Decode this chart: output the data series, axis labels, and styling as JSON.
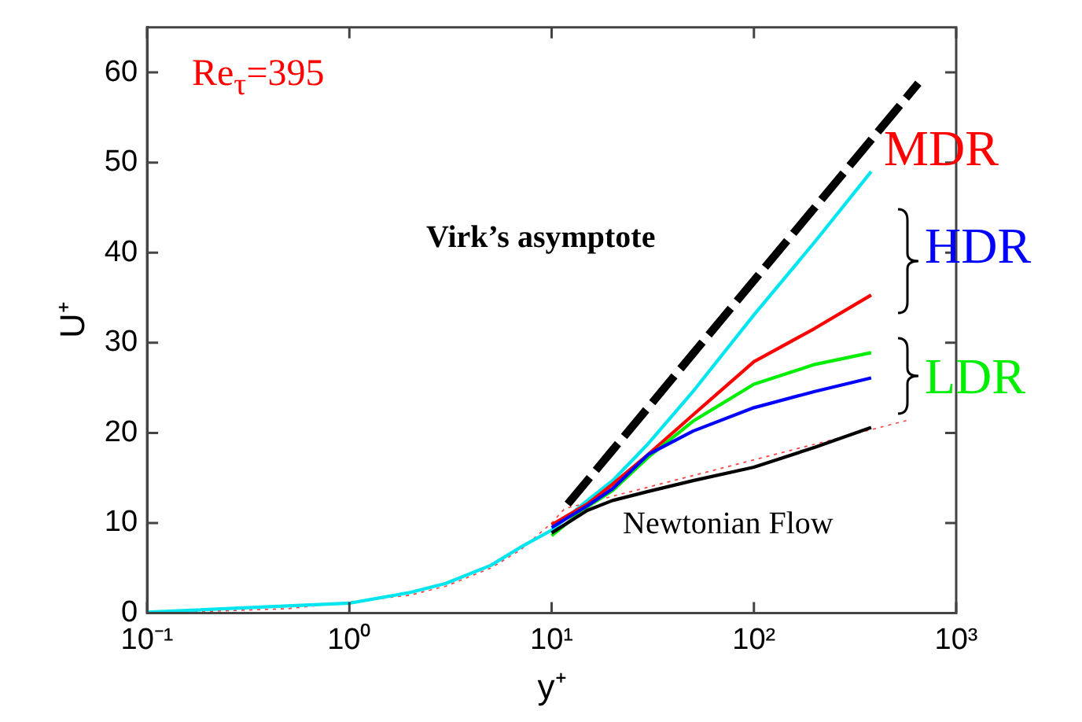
{
  "chart_data": {
    "type": "line",
    "xlabel": "y⁺",
    "ylabel": "U⁺",
    "log": "x",
    "xlim": [
      0.1,
      1000
    ],
    "xticks": [
      {
        "value": 0.1,
        "label": "10⁻¹"
      },
      {
        "value": 1,
        "label": "10⁰"
      },
      {
        "value": 10,
        "label": "10¹"
      },
      {
        "value": 100,
        "label": "10²"
      },
      {
        "value": 1000,
        "label": "10³"
      }
    ],
    "ylim": [
      0,
      65
    ],
    "yticks": [
      0,
      10,
      20,
      30,
      40,
      50,
      60
    ],
    "grid": false,
    "legend": false,
    "marker": "none",
    "series": [
      {
        "color": "#000000",
        "x": [
          10,
          15,
          20,
          30,
          50,
          100,
          200,
          380
        ],
        "values": [
          8.9,
          11.4,
          12.5,
          13.5,
          14.7,
          16.2,
          18.4,
          20.6
        ]
      },
      {
        "color": "#0000ff",
        "x": [
          10,
          15,
          20,
          30,
          50,
          100,
          200,
          380
        ],
        "values": [
          9.5,
          11.9,
          13.8,
          17.6,
          20.2,
          22.8,
          24.6,
          26.1
        ]
      },
      {
        "color": "#00ee00",
        "x": [
          10,
          15,
          20,
          30,
          50,
          100,
          200,
          380
        ],
        "values": [
          8.6,
          11.8,
          13.6,
          17.3,
          21.3,
          25.4,
          27.6,
          28.9
        ]
      },
      {
        "color": "#ff0000",
        "x": [
          10,
          15,
          20,
          30,
          50,
          100,
          200,
          380
        ],
        "values": [
          9.8,
          12.1,
          14.3,
          17.6,
          22,
          27.9,
          31.6,
          35.3
        ]
      },
      {
        "color": "#00e5ee",
        "x": [
          0.1,
          1,
          2,
          3,
          5,
          7,
          10,
          15,
          20,
          30,
          50,
          100,
          200,
          380
        ],
        "values": [
          0.1,
          1.1,
          2.3,
          3.3,
          5.3,
          7.3,
          9.2,
          12.5,
          14.7,
          18.8,
          24.6,
          33.1,
          41.2,
          49
        ]
      },
      {
        "color": "#ff4040",
        "line_style": "dotted",
        "x": [
          0.1,
          0.2,
          0.5,
          2,
          3,
          5,
          7,
          10,
          11.6,
          575
        ],
        "values": [
          0.1,
          0.2,
          0.5,
          2,
          3,
          5,
          7,
          10,
          11.6,
          21.4
        ]
      },
      {
        "color": "#000000",
        "line_style": "dashed",
        "x": [
          12,
          650
        ],
        "values": [
          12.1,
          58.8
        ]
      }
    ],
    "annotations": [
      "Re$_{τ}$=395",
      "MDR",
      "HDR",
      "LDR",
      "Virk’s asymptote",
      "Newtonian Flow"
    ]
  }
}
